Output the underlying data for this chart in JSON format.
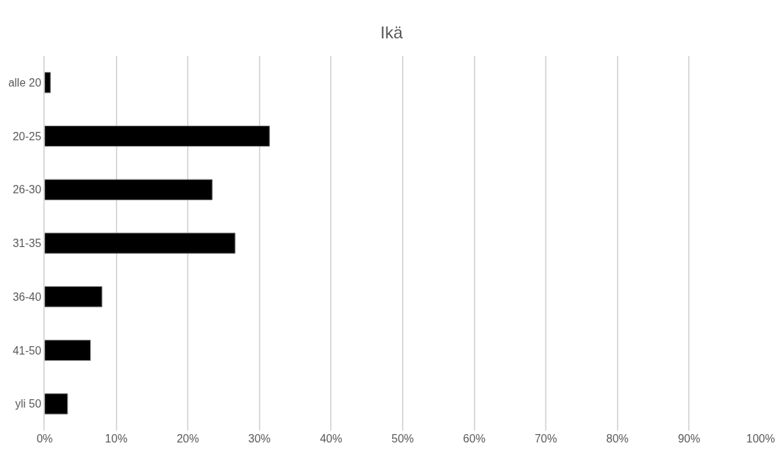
{
  "chart_data": {
    "type": "bar",
    "orientation": "horizontal",
    "title": "Ikä",
    "categories": [
      "alle 20",
      "20-25",
      "26-30",
      "31-35",
      "36-40",
      "41-50",
      "yli 50"
    ],
    "values": [
      0.8,
      31.4,
      23.4,
      26.6,
      8.0,
      6.4,
      3.2
    ],
    "color": "#000000",
    "xlim": [
      0,
      100
    ],
    "xticks": [
      {
        "value": 0,
        "label": "0%"
      },
      {
        "value": 10,
        "label": "10%"
      },
      {
        "value": 20,
        "label": "20%"
      },
      {
        "value": 30,
        "label": "30%"
      },
      {
        "value": 40,
        "label": "40%"
      },
      {
        "value": 50,
        "label": "50%"
      },
      {
        "value": 60,
        "label": "60%"
      },
      {
        "value": 70,
        "label": "70%"
      },
      {
        "value": 80,
        "label": "80%"
      },
      {
        "value": 90,
        "label": "90%"
      },
      {
        "value": 100,
        "label": "100%"
      }
    ],
    "grid": "x"
  }
}
